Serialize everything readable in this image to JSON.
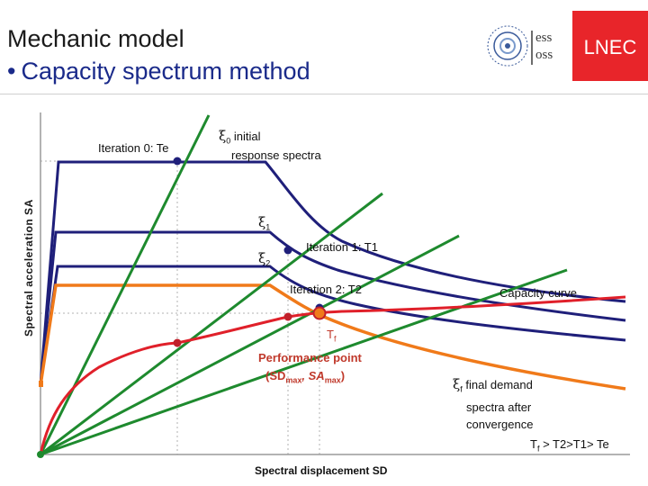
{
  "header": {
    "title": "Mechanic model",
    "subtitle": "Capacity spectrum method",
    "bullet": "•",
    "logo_ess_line1": "ess",
    "logo_ess_line2": "oss",
    "logo_lnec": "LNEC"
  },
  "axes": {
    "ylabel": "Spectral acceleration SA",
    "xlabel": "Spectral displacement  SD"
  },
  "labels": {
    "iter0": "Iteration 0: Te",
    "xi0_sym": "ξ",
    "xi0_sub": "0",
    "xi0_line1": " initial",
    "xi0_line2": "response spectra",
    "xi1_sym": "ξ",
    "xi1_sub": "1",
    "xi2_sym": "ξ",
    "xi2_sub": "2",
    "iter1": "Iteration 1: T1",
    "iter2": "Iteration 2: T2",
    "capacity": "Capacity curve",
    "tf_sym": "T",
    "tf_sub": "f",
    "perf_line1": "Performance point",
    "perf_line2_open": "(SD",
    "perf_max1": "max",
    "perf_comma": ",  SA",
    "perf_max2": "max",
    "perf_close": ")",
    "xif_sym": "ξ",
    "xif_sub": "f",
    "xif_line1": " final demand",
    "xif_line2": "spectra after",
    "xif_line3": "convergence",
    "order_T": "T",
    "order_sub": "f",
    "order_rest": " > T2>T1> Te"
  },
  "colors": {
    "navy": "#1f1f7a",
    "green": "#1e8a2e",
    "orange": "#f07a1a",
    "red": "#e0202a",
    "dash": "#b0b0b0"
  }
}
